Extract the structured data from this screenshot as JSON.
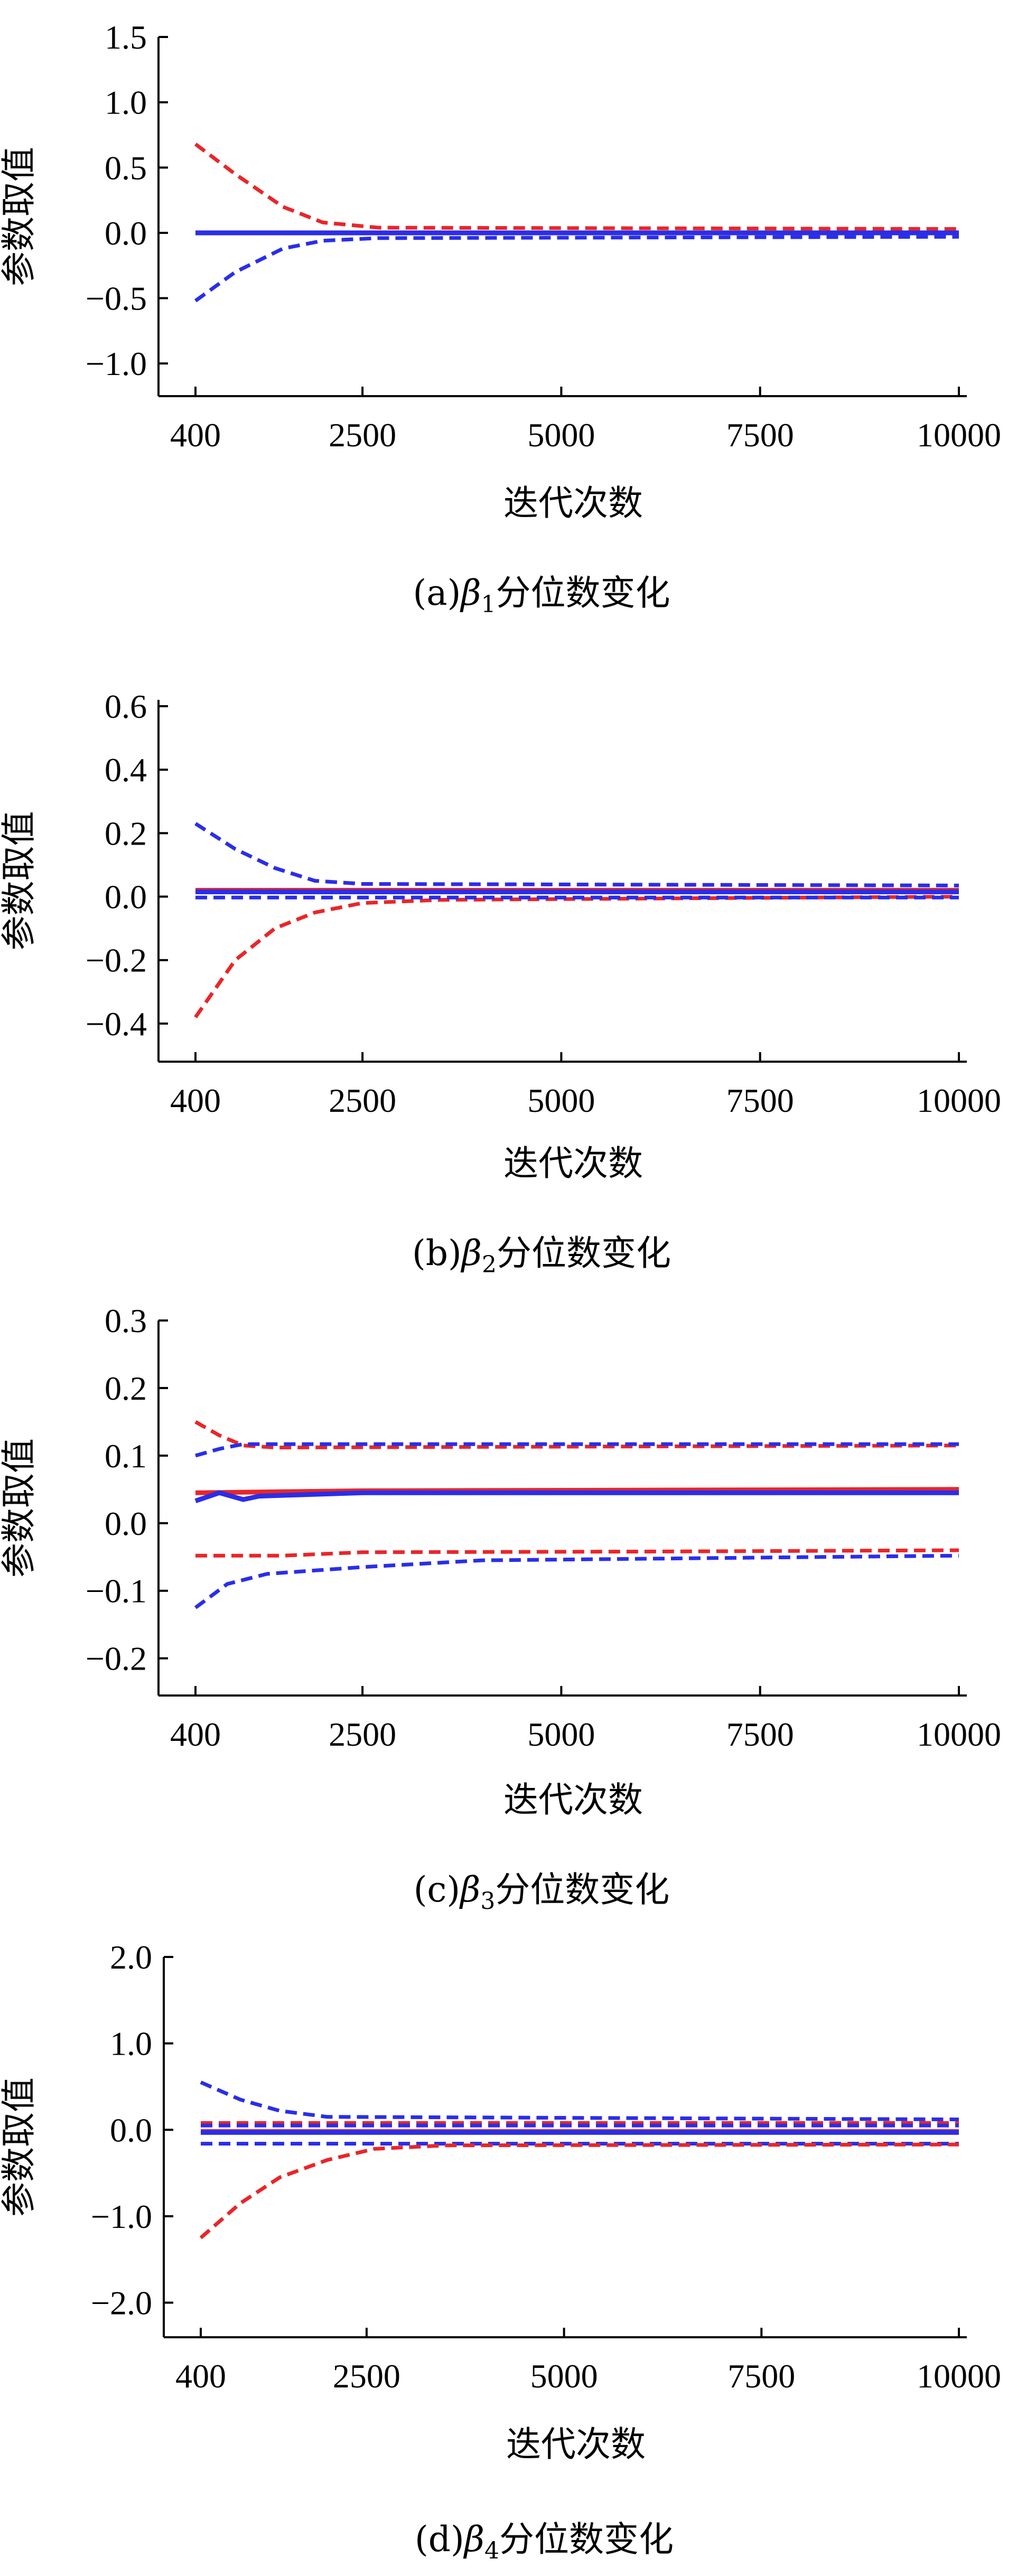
{
  "chart_data": [
    {
      "type": "line",
      "caption_prefix": "(a)",
      "caption_symbol": "β",
      "caption_sub": "1",
      "caption_suffix": "分位数变化",
      "xlabel": "迭代次数",
      "ylabel": "参数取值",
      "x_ticks": [
        400,
        2500,
        5000,
        7500,
        10000
      ],
      "x_tick_labels": [
        "400",
        "2500",
        "5000",
        "7500",
        "10000"
      ],
      "xlim": [
        400,
        10000
      ],
      "y_ticks": [
        1.5,
        1.0,
        0.5,
        0.0,
        -0.5,
        -1.0
      ],
      "y_tick_labels": [
        "1.5",
        "1.0",
        "0.5",
        "0.0",
        "−0.5",
        "−1.0"
      ],
      "ylim": [
        -1.25,
        1.5
      ],
      "series": [
        {
          "color": "#e8262a",
          "dash": "dashed",
          "x": [
            400,
            900,
            1500,
            2000,
            2700,
            10000
          ],
          "values": [
            0.68,
            0.45,
            0.2,
            0.08,
            0.04,
            0.03
          ]
        },
        {
          "color": "#2a2ee8",
          "dash": "dashed",
          "x": [
            400,
            900,
            1500,
            2000,
            2700,
            10000
          ],
          "values": [
            -0.52,
            -0.3,
            -0.12,
            -0.06,
            -0.04,
            -0.03
          ]
        },
        {
          "color": "#e8262a",
          "dash": "solid",
          "x": [
            400,
            10000
          ],
          "values": [
            0.0,
            0.0
          ]
        },
        {
          "color": "#2a2ee8",
          "dash": "solid",
          "x": [
            400,
            10000
          ],
          "values": [
            0.0,
            0.0
          ]
        }
      ]
    },
    {
      "type": "line",
      "caption_prefix": "(b)",
      "caption_symbol": "β",
      "caption_sub": "2",
      "caption_suffix": "分位数变化",
      "xlabel": "迭代次数",
      "ylabel": "参数取值",
      "x_ticks": [
        400,
        2500,
        5000,
        7500,
        10000
      ],
      "x_tick_labels": [
        "400",
        "2500",
        "5000",
        "7500",
        "10000"
      ],
      "xlim": [
        400,
        10000
      ],
      "y_ticks": [
        0.6,
        0.4,
        0.2,
        0.0,
        -0.2,
        -0.4
      ],
      "y_tick_labels": [
        "0.6",
        "0.4",
        "0.2",
        "0.0",
        "−0.2",
        "−0.4"
      ],
      "ylim": [
        -0.52,
        0.62
      ],
      "series": [
        {
          "color": "#2a2ee8",
          "dash": "dashed",
          "x": [
            400,
            900,
            1400,
            1900,
            2500,
            10000
          ],
          "values": [
            0.23,
            0.15,
            0.09,
            0.05,
            0.04,
            0.035
          ]
        },
        {
          "color": "#e8262a",
          "dash": "dashed",
          "x": [
            400,
            900,
            1400,
            1900,
            2500,
            3500,
            10000
          ],
          "values": [
            -0.38,
            -0.2,
            -0.1,
            -0.05,
            -0.02,
            -0.01,
            0.0
          ]
        },
        {
          "color": "#e8262a",
          "dash": "solid",
          "x": [
            400,
            10000
          ],
          "values": [
            0.02,
            0.02
          ]
        },
        {
          "color": "#2a2ee8",
          "dash": "solid",
          "x": [
            400,
            10000
          ],
          "values": [
            0.015,
            0.015
          ]
        },
        {
          "color": "#2a2ee8",
          "dash": "dashed",
          "x": [
            400,
            10000
          ],
          "values": [
            -0.003,
            -0.003
          ]
        }
      ]
    },
    {
      "type": "line",
      "caption_prefix": "(c)",
      "caption_symbol": "β",
      "caption_sub": "3",
      "caption_suffix": "分位数变化",
      "xlabel": "迭代次数",
      "ylabel": "参数取值",
      "x_ticks": [
        400,
        2500,
        5000,
        7500,
        10000
      ],
      "x_tick_labels": [
        "400",
        "2500",
        "5000",
        "7500",
        "10000"
      ],
      "xlim": [
        400,
        10000
      ],
      "y_ticks": [
        0.3,
        0.2,
        0.1,
        0.0,
        -0.1,
        -0.2
      ],
      "y_tick_labels": [
        "0.3",
        "0.2",
        "0.1",
        "0.0",
        "−0.1",
        "−0.2"
      ],
      "ylim": [
        -0.255,
        0.3
      ],
      "series": [
        {
          "color": "#e8262a",
          "dash": "dashed",
          "x": [
            400,
            700,
            1000,
            1400,
            10000
          ],
          "values": [
            0.15,
            0.13,
            0.115,
            0.112,
            0.115
          ]
        },
        {
          "color": "#2a2ee8",
          "dash": "dashed",
          "x": [
            400,
            700,
            1000,
            10000
          ],
          "values": [
            0.1,
            0.11,
            0.117,
            0.117
          ]
        },
        {
          "color": "#e8262a",
          "dash": "solid",
          "x": [
            400,
            2500,
            10000
          ],
          "values": [
            0.045,
            0.048,
            0.05
          ]
        },
        {
          "color": "#2a2ee8",
          "dash": "solid",
          "x": [
            400,
            700,
            1000,
            1200,
            2500,
            10000
          ],
          "values": [
            0.033,
            0.045,
            0.035,
            0.04,
            0.045,
            0.045
          ]
        },
        {
          "color": "#e8262a",
          "dash": "dashed",
          "x": [
            400,
            1500,
            2500,
            6000,
            10000
          ],
          "values": [
            -0.048,
            -0.048,
            -0.043,
            -0.042,
            -0.04
          ]
        },
        {
          "color": "#2a2ee8",
          "dash": "dashed",
          "x": [
            400,
            800,
            1300,
            2500,
            4000,
            10000
          ],
          "values": [
            -0.125,
            -0.09,
            -0.075,
            -0.065,
            -0.055,
            -0.048
          ]
        }
      ]
    },
    {
      "type": "line",
      "caption_prefix": "(d)",
      "caption_symbol": "β",
      "caption_sub": "4",
      "caption_suffix": "分位数变化",
      "xlabel": "迭代次数",
      "ylabel": "参数取值",
      "x_ticks": [
        400,
        2500,
        5000,
        7500,
        10000
      ],
      "x_tick_labels": [
        "400",
        "2500",
        "5000",
        "7500",
        "10000"
      ],
      "xlim": [
        400,
        10000
      ],
      "y_ticks": [
        2.0,
        1.0,
        0.0,
        -1.0,
        -2.0
      ],
      "y_tick_labels": [
        "2.0",
        "1.0",
        "0.0",
        "−1.0",
        "−2.0"
      ],
      "ylim": [
        -2.4,
        2.0
      ],
      "series": [
        {
          "color": "#2a2ee8",
          "dash": "dashed",
          "x": [
            400,
            900,
            1400,
            2000,
            10000
          ],
          "values": [
            0.55,
            0.35,
            0.22,
            0.15,
            0.12
          ]
        },
        {
          "color": "#e8262a",
          "dash": "dashed",
          "x": [
            400,
            10000
          ],
          "values": [
            0.08,
            0.08
          ]
        },
        {
          "color": "#2a2ee8",
          "dash": "dashed",
          "x": [
            400,
            10000
          ],
          "values": [
            0.05,
            0.05
          ]
        },
        {
          "color": "#e8262a",
          "dash": "solid",
          "x": [
            400,
            10000
          ],
          "values": [
            -0.02,
            -0.02
          ]
        },
        {
          "color": "#2a2ee8",
          "dash": "solid",
          "x": [
            400,
            10000
          ],
          "values": [
            -0.03,
            -0.03
          ]
        },
        {
          "color": "#2a2ee8",
          "dash": "dashed",
          "x": [
            400,
            10000
          ],
          "values": [
            -0.16,
            -0.16
          ]
        },
        {
          "color": "#e8262a",
          "dash": "dashed",
          "x": [
            400,
            900,
            1400,
            2000,
            2600,
            3500,
            10000
          ],
          "values": [
            -1.25,
            -0.85,
            -0.55,
            -0.35,
            -0.22,
            -0.18,
            -0.17
          ]
        }
      ]
    }
  ]
}
